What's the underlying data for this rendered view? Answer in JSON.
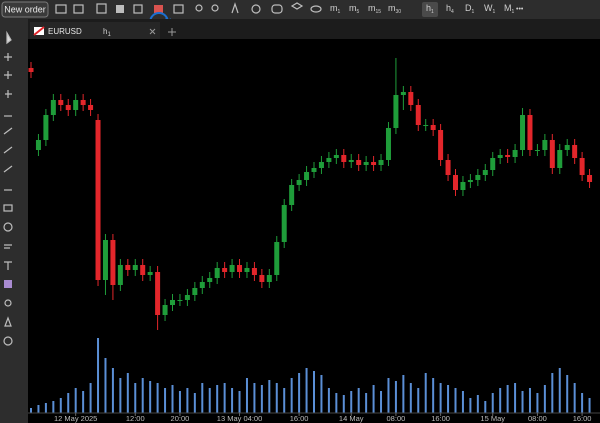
{
  "toolbar": {
    "new_order": "New order",
    "timeframes": [
      {
        "letter": "m",
        "sub": "1"
      },
      {
        "letter": "m",
        "sub": "5"
      },
      {
        "letter": "m",
        "sub": "15"
      },
      {
        "letter": "m",
        "sub": "30"
      },
      {
        "letter": "h",
        "sub": "1"
      },
      {
        "letter": "h",
        "sub": "4"
      },
      {
        "letter": "D",
        "sub": "1"
      },
      {
        "letter": "W",
        "sub": "1"
      },
      {
        "letter": "M",
        "sub": "1"
      }
    ],
    "more": "•••"
  },
  "tab": {
    "symbol": "EURUSD",
    "timeframe": {
      "letter": "h",
      "sub": "1"
    }
  },
  "chart_data": {
    "type": "candlestick",
    "up_color": "#1f9d3a",
    "down_color": "#e3262b",
    "volume_color": "#5b8fd6",
    "ylim": [
      60,
      345
    ],
    "volume_ylim": [
      0,
      80
    ],
    "open": [
      332,
      250,
      260,
      285,
      300,
      295,
      290,
      300,
      295,
      280,
      120,
      160,
      115,
      135,
      130,
      135,
      125,
      128,
      85,
      95,
      100,
      100,
      105,
      112,
      118,
      122,
      132,
      128,
      135,
      128,
      132,
      125,
      118,
      125,
      158,
      195,
      215,
      220,
      228,
      232,
      238,
      242,
      245,
      238,
      240,
      235,
      238,
      235,
      240,
      272,
      305,
      308,
      295,
      275,
      275,
      270,
      240,
      225,
      210,
      218,
      220,
      225,
      230,
      242,
      245,
      243,
      250,
      285,
      250,
      250,
      260,
      232,
      250,
      255,
      242,
      225
    ],
    "high": [
      338,
      266,
      291,
      306,
      306,
      301,
      306,
      306,
      301,
      286,
      166,
      166,
      141,
      141,
      141,
      141,
      134,
      134,
      101,
      106,
      106,
      111,
      118,
      124,
      128,
      138,
      138,
      141,
      141,
      138,
      138,
      131,
      131,
      164,
      201,
      221,
      226,
      234,
      238,
      244,
      248,
      251,
      251,
      246,
      246,
      244,
      244,
      246,
      278,
      342,
      314,
      314,
      301,
      281,
      281,
      276,
      246,
      231,
      224,
      226,
      231,
      236,
      248,
      251,
      251,
      256,
      292,
      291,
      256,
      266,
      266,
      256,
      261,
      261,
      248,
      231
    ],
    "low": [
      322,
      244,
      254,
      279,
      289,
      284,
      284,
      289,
      284,
      114,
      105,
      100,
      109,
      124,
      124,
      119,
      119,
      70,
      79,
      89,
      94,
      94,
      99,
      106,
      112,
      116,
      122,
      122,
      122,
      122,
      119,
      112,
      112,
      119,
      152,
      189,
      209,
      214,
      222,
      226,
      232,
      236,
      232,
      232,
      229,
      229,
      229,
      229,
      234,
      266,
      290,
      289,
      269,
      269,
      264,
      234,
      219,
      204,
      204,
      212,
      214,
      219,
      224,
      236,
      237,
      237,
      244,
      244,
      244,
      244,
      226,
      226,
      244,
      236,
      219,
      212
    ],
    "close": [
      328,
      260,
      285,
      300,
      295,
      290,
      300,
      295,
      290,
      120,
      160,
      115,
      135,
      130,
      135,
      125,
      128,
      85,
      95,
      100,
      100,
      105,
      112,
      118,
      122,
      132,
      128,
      135,
      128,
      132,
      125,
      118,
      125,
      158,
      195,
      215,
      220,
      228,
      232,
      238,
      242,
      245,
      238,
      240,
      235,
      238,
      235,
      240,
      272,
      305,
      308,
      295,
      275,
      275,
      270,
      240,
      225,
      210,
      218,
      220,
      225,
      230,
      242,
      245,
      243,
      250,
      285,
      250,
      250,
      260,
      232,
      250,
      255,
      242,
      225,
      218
    ],
    "volume": [
      5,
      8,
      10,
      12,
      15,
      20,
      25,
      22,
      30,
      75,
      55,
      45,
      35,
      40,
      30,
      35,
      32,
      30,
      25,
      28,
      22,
      25,
      20,
      30,
      25,
      28,
      30,
      25,
      22,
      35,
      30,
      28,
      33,
      30,
      25,
      35,
      40,
      45,
      42,
      38,
      25,
      20,
      18,
      22,
      25,
      20,
      28,
      22,
      35,
      32,
      38,
      30,
      25,
      40,
      35,
      30,
      28,
      25,
      22,
      15,
      18,
      12,
      20,
      25,
      28,
      30,
      22,
      25,
      20,
      28,
      40,
      45,
      38,
      30,
      20,
      15
    ],
    "time_labels": [
      {
        "label": "12 May 2025",
        "at": 6
      },
      {
        "label": "12:00",
        "at": 14
      },
      {
        "label": "20:00",
        "at": 20
      },
      {
        "label": "13 May 04:00",
        "at": 28
      },
      {
        "label": "16:00",
        "at": 36
      },
      {
        "label": "14 May",
        "at": 43
      },
      {
        "label": "08:00",
        "at": 49
      },
      {
        "label": "16:00",
        "at": 55
      },
      {
        "label": "15 May",
        "at": 62
      },
      {
        "label": "08:00",
        "at": 68
      },
      {
        "label": "16:00",
        "at": 74
      }
    ]
  }
}
